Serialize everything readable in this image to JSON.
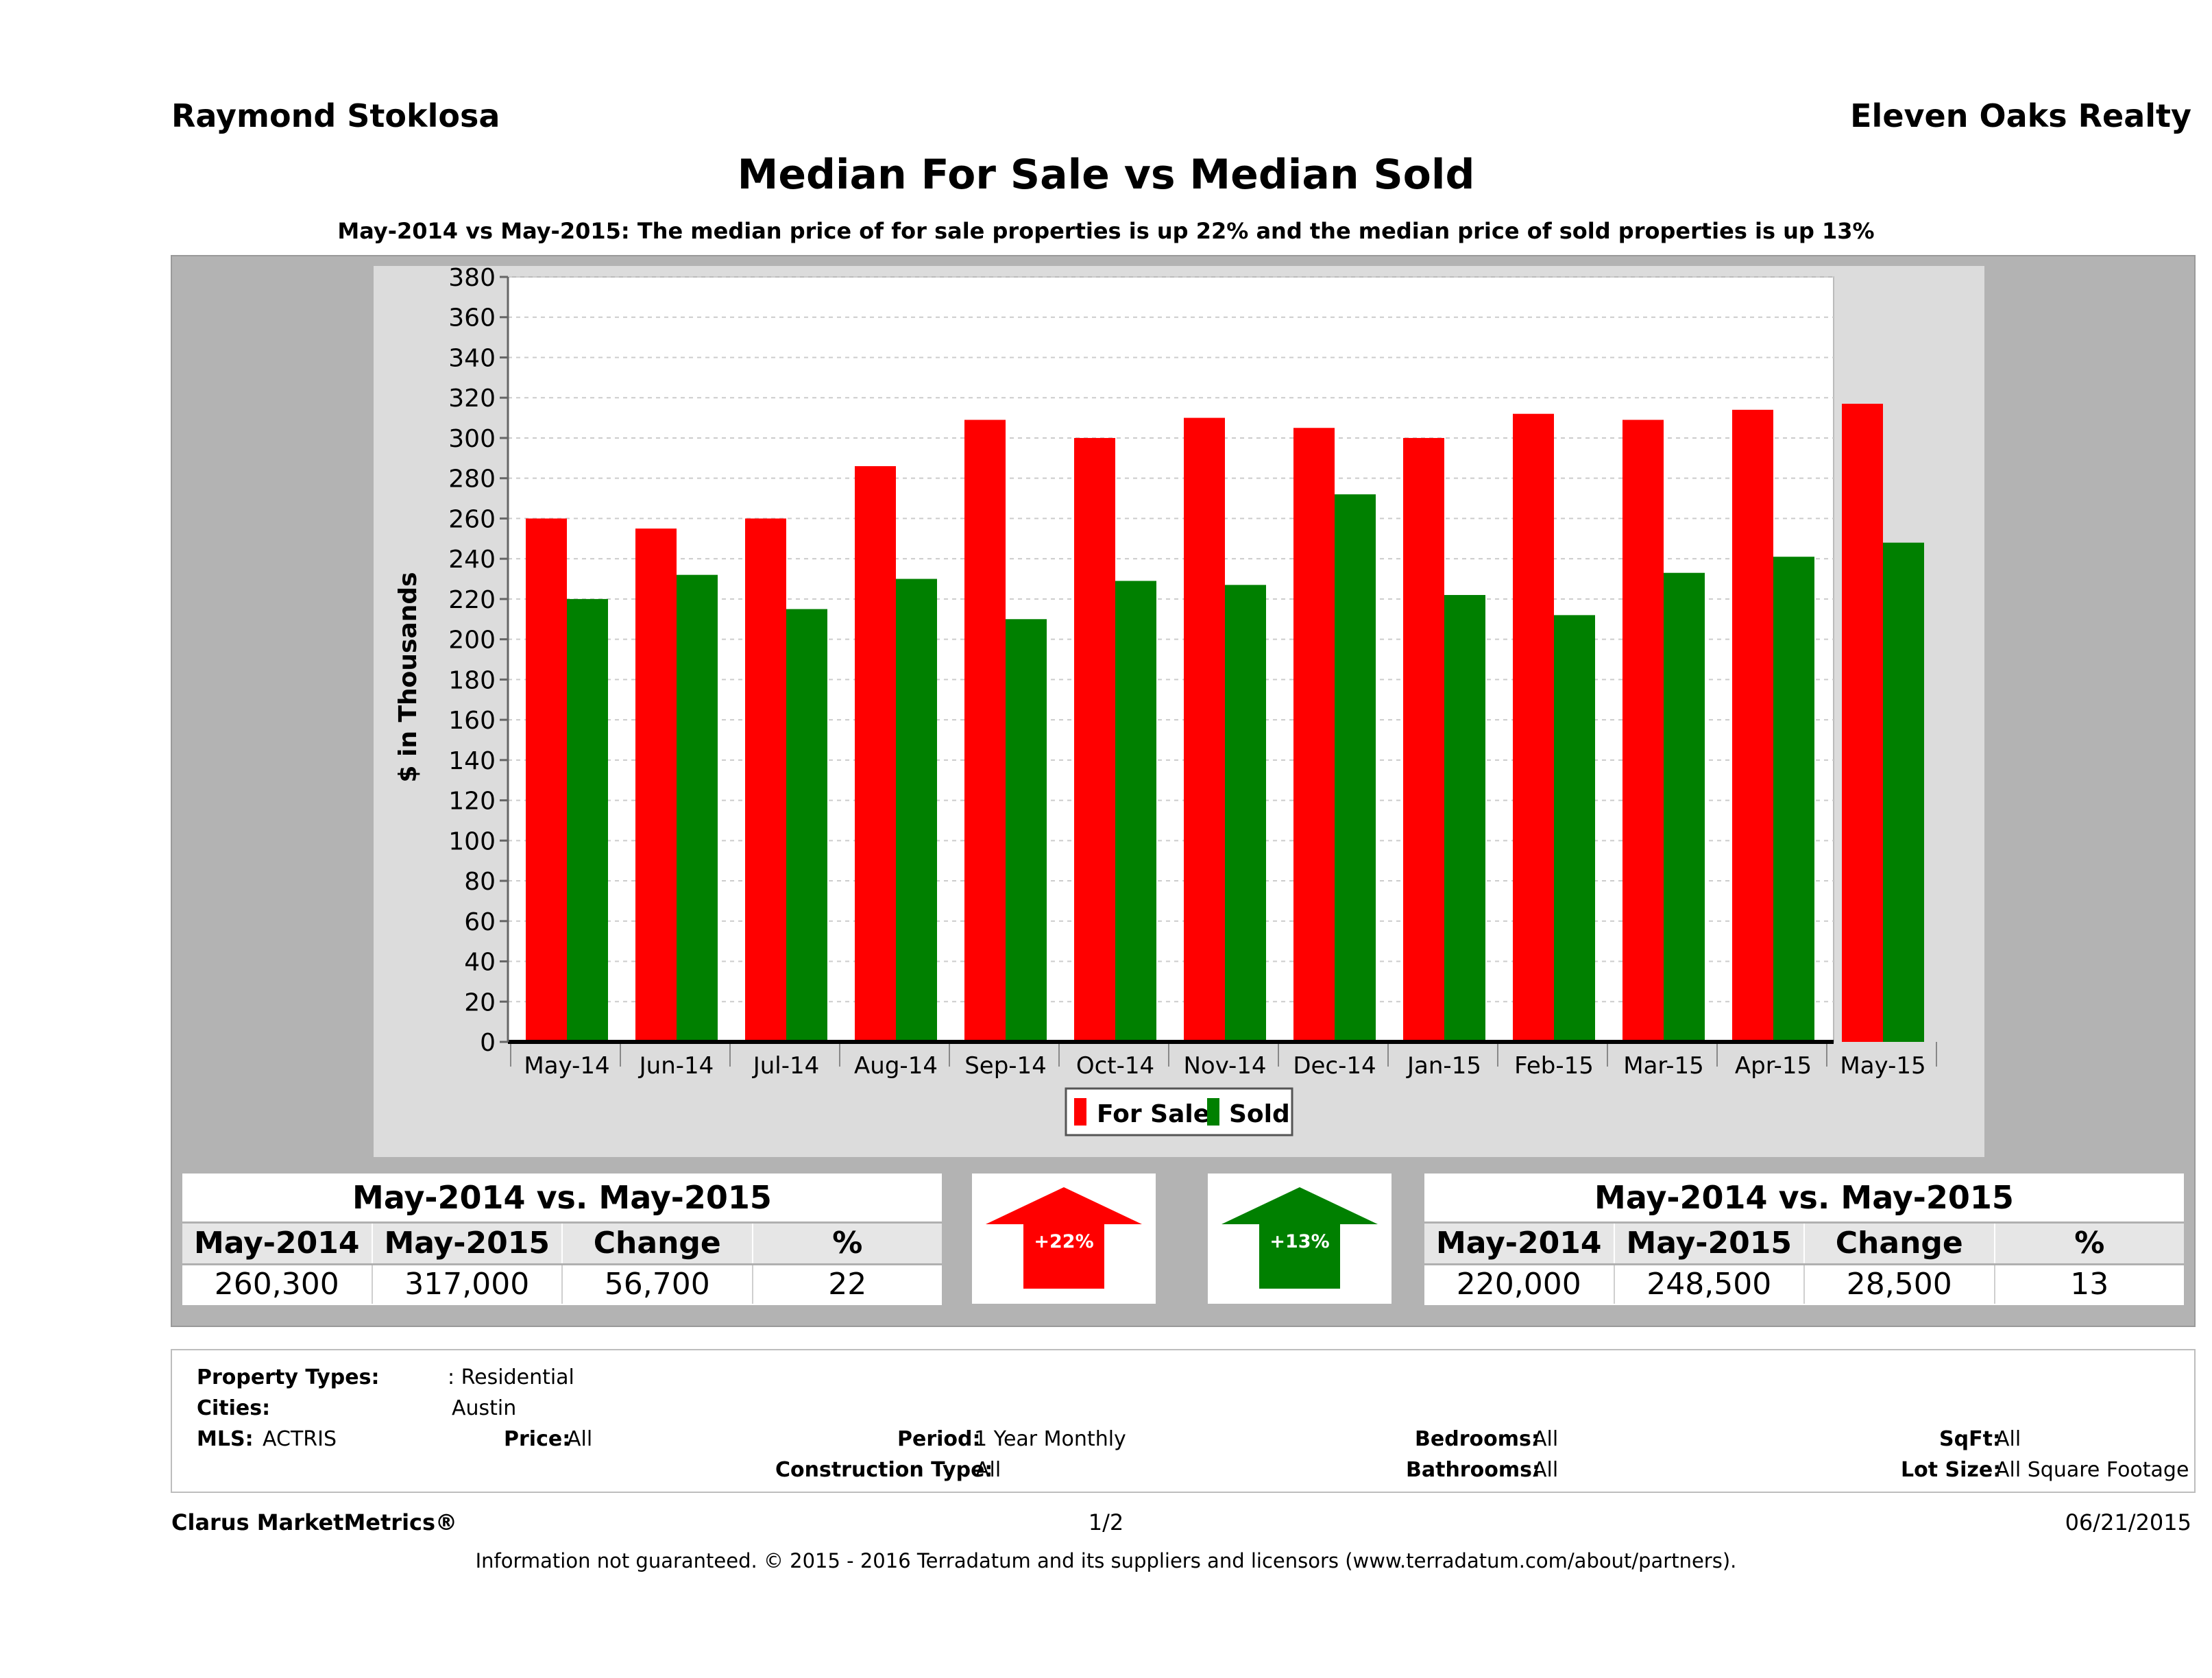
{
  "header": {
    "agent": "Raymond Stoklosa",
    "company": "Eleven Oaks Realty",
    "title": "Median For Sale vs Median Sold",
    "subtitle": "May-2014 vs May-2015: The median price of for sale properties is up 22% and the median price of sold properties is up 13%"
  },
  "colors": {
    "for_sale": "#ff0000",
    "sold": "#008000",
    "panel": "#b3b3b3",
    "plot_bg": "#ffffff"
  },
  "chart_data": {
    "type": "bar",
    "title": "Median For Sale vs Median Sold",
    "ylabel": "$ in Thousands",
    "xlabel": "",
    "ylim": [
      0,
      380
    ],
    "yticks": [
      "0",
      "20",
      "40",
      "60",
      "80",
      "100",
      "120",
      "140",
      "160",
      "180",
      "200",
      "220",
      "240",
      "260",
      "280",
      "300",
      "320",
      "340",
      "360",
      "380"
    ],
    "grid": true,
    "legend_placement": "bottom-center",
    "categories": [
      "May-14",
      "Jun-14",
      "Jul-14",
      "Aug-14",
      "Sep-14",
      "Oct-14",
      "Nov-14",
      "Dec-14",
      "Jan-15",
      "Feb-15",
      "Mar-15",
      "Apr-15",
      "May-15"
    ],
    "series": [
      {
        "name": "For Sale",
        "color": "#ff0000",
        "values": [
          260,
          255,
          260,
          286,
          309,
          300,
          310,
          305,
          300,
          312,
          309,
          314,
          317
        ]
      },
      {
        "name": "Sold",
        "color": "#008000",
        "values": [
          220,
          232,
          215,
          230,
          210,
          229,
          227,
          272,
          222,
          212,
          233,
          241,
          248
        ]
      }
    ]
  },
  "stats_for_sale": {
    "heading": "May-2014 vs. May-2015",
    "columns": [
      "May-2014",
      "May-2015",
      "Change",
      "%"
    ],
    "values": [
      "260,300",
      "317,000",
      "56,700",
      "22"
    ]
  },
  "stats_sold": {
    "heading": "May-2014 vs. May-2015",
    "columns": [
      "May-2014",
      "May-2015",
      "Change",
      "%"
    ],
    "values": [
      "220,000",
      "248,500",
      "28,500",
      "13"
    ]
  },
  "arrows": {
    "for_sale_label": "+22%",
    "sold_label": "+13%"
  },
  "filters": {
    "property_types_label": "Property Types:",
    "property_types_value": ": Residential",
    "cities_label": "Cities:",
    "cities_value": "Austin",
    "mls_label": "MLS:",
    "mls_value": "ACTRIS",
    "price_label": "Price:",
    "price_value": "All",
    "period_label": "Period:",
    "period_value": "1 Year Monthly",
    "construction_label": "Construction Type:",
    "construction_value": "All",
    "bedrooms_label": "Bedrooms:",
    "bedrooms_value": "All",
    "bathrooms_label": "Bathrooms:",
    "bathrooms_value": "All",
    "sqft_label": "SqFt:",
    "sqft_value": "All",
    "lot_label": "Lot Size:",
    "lot_value": "All Square Footage"
  },
  "footer": {
    "brand": "Clarus MarketMetrics®",
    "page": "1/2",
    "date": "06/21/2015",
    "disclaimer": "Information not guaranteed. © 2015 - 2016 Terradatum and its suppliers and licensors (www.terradatum.com/about/partners)."
  }
}
